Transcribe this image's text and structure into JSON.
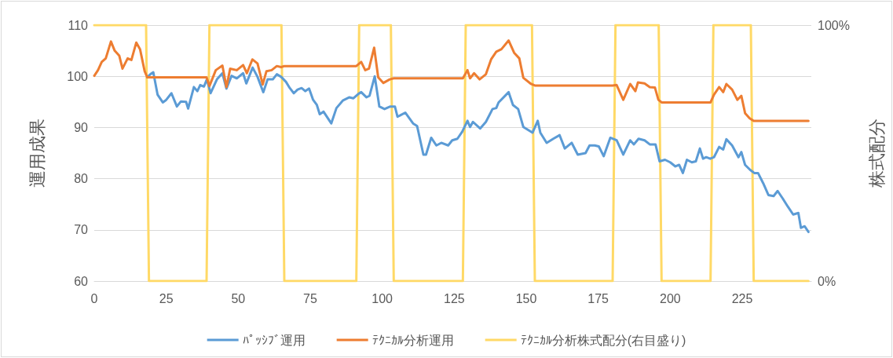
{
  "chart_data": {
    "type": "line",
    "ylabel": "運用成果",
    "y2label": "株式配分",
    "xlim": [
      0,
      249
    ],
    "xticks": [
      0,
      25,
      50,
      75,
      100,
      125,
      150,
      175,
      200,
      225
    ],
    "ylim": [
      60,
      110
    ],
    "yticks": [
      60,
      70,
      80,
      90,
      100,
      110
    ],
    "y2lim": [
      0,
      100
    ],
    "y2ticks": [
      {
        "value": 0,
        "label": "0%"
      },
      {
        "value": 100,
        "label": "100%"
      }
    ],
    "grid": "y",
    "legend": "bottom",
    "marker": "none",
    "line_style": "solid",
    "series": [
      {
        "name": "ﾊﾟｯｼﾌﾞ運用",
        "color": "#5b9bd5",
        "x": [
          18.4,
          19.7,
          20.5,
          22,
          23.8,
          25,
          26.8,
          28.7,
          30.1,
          31.9,
          32.6,
          34.6,
          35.8,
          36.8,
          38.1,
          39.1,
          40.4,
          42.6,
          44.5,
          45.9,
          47.7,
          49.5,
          51.7,
          52.8,
          55,
          56.7,
          58.7,
          60.2,
          62,
          63.4,
          64.9,
          66.6,
          67.9,
          69.3,
          70.6,
          72,
          73.3,
          74.6,
          76,
          77.3,
          78.3,
          79.6,
          82.3,
          84.1,
          86.4,
          88.6,
          90,
          91.8,
          92.7,
          94.5,
          95.6,
          97.4,
          99,
          100.8,
          102.8,
          104.4,
          105.3,
          108,
          110.7,
          112.1,
          114.3,
          115.2,
          117,
          118.8,
          120.5,
          122.9,
          124.3,
          126.1,
          127.8,
          129.6,
          130.5,
          131.5,
          134,
          136,
          138.3,
          139.6,
          140.4,
          143.9,
          145.4,
          147.2,
          149,
          152.2,
          154,
          154.9,
          157.1,
          159.4,
          161.6,
          163.4,
          165.8,
          167.9,
          170.6,
          172,
          173.8,
          175.2,
          176.9,
          179.2,
          181.4,
          183.7,
          186.1,
          187.4,
          189,
          191.1,
          192.9,
          194.9,
          196.3,
          198.2,
          200,
          201.8,
          203.1,
          204.4,
          205.8,
          207.5,
          208.9,
          210.3,
          211.4,
          212.5,
          213.9,
          215.2,
          217,
          218.4,
          219.5,
          221.5,
          223.7,
          224.7,
          226,
          227.8,
          229.2,
          230.5,
          232.3,
          234.1,
          235.9,
          237.3,
          239.1,
          240.9,
          242.7,
          244.5,
          245.4,
          246.7,
          248
        ],
        "values": [
          99.8,
          100.5,
          100.8,
          96.4,
          94.9,
          95.4,
          96.7,
          94.1,
          95.1,
          95,
          93.7,
          97.9,
          97.1,
          98.3,
          98,
          99.4,
          96.7,
          99.4,
          100.6,
          97.6,
          100.1,
          99.6,
          100.6,
          98.6,
          101.7,
          99.9,
          96.9,
          99.4,
          99.4,
          100.4,
          99.9,
          98.9,
          97.7,
          96.7,
          97.4,
          97.7,
          97.1,
          97.6,
          95.4,
          94.4,
          92.6,
          93.1,
          90.8,
          93.8,
          95.3,
          95.9,
          95.7,
          96.6,
          96.9,
          95.9,
          96.2,
          100,
          94.1,
          93.6,
          94.1,
          94.1,
          92.1,
          92.9,
          90.8,
          90.3,
          84.7,
          84.7,
          88,
          86.5,
          87,
          86.5,
          87.5,
          87.8,
          89.2,
          91.3,
          90.1,
          91.1,
          89.8,
          91.1,
          93.6,
          93.8,
          94.9,
          96.9,
          94.4,
          93.6,
          90.1,
          89,
          91.3,
          89,
          87,
          87.8,
          88.5,
          85.9,
          87,
          84.7,
          85,
          86.5,
          86.5,
          86.3,
          84.4,
          88,
          87.5,
          84.7,
          87.5,
          86.7,
          87.8,
          87.5,
          86.7,
          86.7,
          83.4,
          83.7,
          83.2,
          82.4,
          82.7,
          81.1,
          83.7,
          83.2,
          83.4,
          85.9,
          83.9,
          84.2,
          83.9,
          84.2,
          86.2,
          85.7,
          87.7,
          86.5,
          84.2,
          85.2,
          82.7,
          81.7,
          81.1,
          81.1,
          79.1,
          76.8,
          76.6,
          77.6,
          76.1,
          74.5,
          73,
          73.3,
          70.4,
          70.7,
          69.6
        ]
      },
      {
        "name": "ﾃｸﾆｶﾙ分析運用",
        "color": "#ed7d31",
        "x": [
          0,
          1.3,
          2.6,
          4,
          5.8,
          7.1,
          8.7,
          9.8,
          11.6,
          12.9,
          14.6,
          15.9,
          17.5,
          18.4,
          39,
          40,
          42.2,
          44.5,
          45.9,
          47.2,
          49.5,
          51.7,
          53,
          54.9,
          56.7,
          58.5,
          59.8,
          61.6,
          63.4,
          64.9,
          66,
          91,
          92.7,
          94.1,
          95.4,
          97.2,
          98.6,
          100.4,
          102.6,
          104,
          128,
          129.6,
          130.5,
          131.9,
          133.8,
          136,
          137.8,
          139.6,
          141.4,
          143.9,
          145.8,
          147.6,
          149,
          151.7,
          153,
          180,
          181.4,
          183.7,
          186.1,
          187.9,
          188.8,
          191.1,
          192.9,
          194.7,
          195.9,
          197,
          214,
          215.2,
          217,
          218.4,
          219.5,
          221.5,
          223.3,
          224.7,
          226,
          227.6,
          229,
          248
        ],
        "values": [
          100.1,
          101.2,
          102.8,
          103.5,
          106.8,
          105,
          104,
          101.5,
          103.5,
          103.2,
          106.6,
          105.3,
          101,
          99.8,
          99.8,
          98.1,
          101.2,
          102.1,
          97.9,
          101.5,
          101.2,
          102.2,
          100.6,
          103.3,
          102.5,
          98.4,
          101,
          101.2,
          102,
          101.8,
          102,
          102,
          102.8,
          101.2,
          101.5,
          105.6,
          99.8,
          98.7,
          99.4,
          99.6,
          99.6,
          101.2,
          99.6,
          100.6,
          99.4,
          100.4,
          103.3,
          104.8,
          105.3,
          107,
          104.6,
          103.5,
          99.7,
          98.5,
          98.2,
          98.2,
          98.3,
          95.4,
          98.5,
          97.1,
          98.8,
          98.6,
          97.9,
          97.8,
          95.4,
          94.9,
          94.9,
          96.4,
          97.9,
          96.9,
          98.5,
          97.4,
          95.4,
          96.2,
          92.8,
          91.8,
          91.3,
          91.3
        ]
      },
      {
        "name": "ﾃｸﾆｶﾙ分析株式配分(右目盛り)",
        "color": "#ffd966",
        "axis": "y2",
        "x": [
          0,
          18,
          19,
          39,
          40,
          65,
          66,
          91,
          92,
          103,
          104,
          128,
          129,
          152,
          153,
          180,
          181,
          196,
          197,
          214,
          215,
          228,
          229,
          248
        ],
        "values": [
          100,
          100,
          0,
          0,
          100,
          100,
          0,
          0,
          100,
          100,
          0,
          0,
          100,
          100,
          0,
          0,
          100,
          100,
          0,
          0,
          100,
          100,
          0,
          0
        ]
      }
    ]
  }
}
